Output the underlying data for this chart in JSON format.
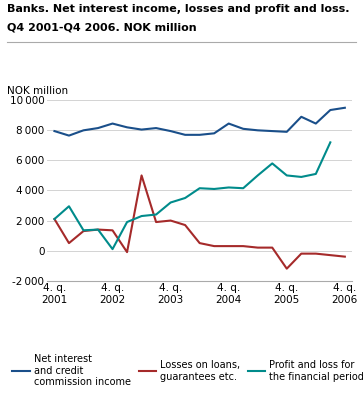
{
  "title_line1": "Banks. Net interest income, losses and profit and loss.",
  "title_line2": "Q4 2001-Q4 2006. NOK million",
  "ylabel": "NOK million",
  "ylim": [
    -2000,
    10000
  ],
  "yticks": [
    -2000,
    0,
    2000,
    4000,
    6000,
    8000,
    10000
  ],
  "xtick_labels": [
    "4. q.\n2001",
    "4. q.\n2002",
    "4. q.\n2003",
    "4. q.\n2004",
    "4. q.\n2005",
    "4. q.\n2006"
  ],
  "xtick_positions": [
    0,
    4,
    8,
    12,
    16,
    20
  ],
  "n_points": 21,
  "blue_line": {
    "label": "Net interest\nand credit\ncommission income",
    "color": "#1a4f8a",
    "values": [
      7950,
      7650,
      8000,
      8150,
      8450,
      8200,
      8050,
      8150,
      7950,
      7700,
      7700,
      7800,
      8450,
      8100,
      8000,
      7950,
      7900,
      8900,
      8450,
      9350,
      9500
    ]
  },
  "red_line": {
    "label": "Losses on loans,\nguarantees etc.",
    "color": "#a52a2a",
    "values": [
      2100,
      500,
      1300,
      1400,
      1350,
      -100,
      5000,
      1900,
      2000,
      1700,
      500,
      300,
      300,
      300,
      200,
      200,
      -1200,
      -200,
      -200,
      -300,
      -400
    ]
  },
  "cyan_line": {
    "label": "Profit and loss for\nthe financial period",
    "color": "#008b8b",
    "values": [
      2100,
      2950,
      1350,
      1400,
      100,
      1900,
      2300,
      2400,
      3200,
      3500,
      4150,
      4100,
      4200,
      4150,
      5000,
      5800,
      5000,
      4900,
      5100,
      7200,
      null
    ]
  },
  "legend_entries": [
    {
      "label": "Net interest\nand credit\ncommission income",
      "color": "#1a4f8a"
    },
    {
      "label": "Losses on loans,\nguarantees etc.",
      "color": "#a52a2a"
    },
    {
      "label": "Profit and loss for\nthe financial period",
      "color": "#008b8b"
    }
  ]
}
